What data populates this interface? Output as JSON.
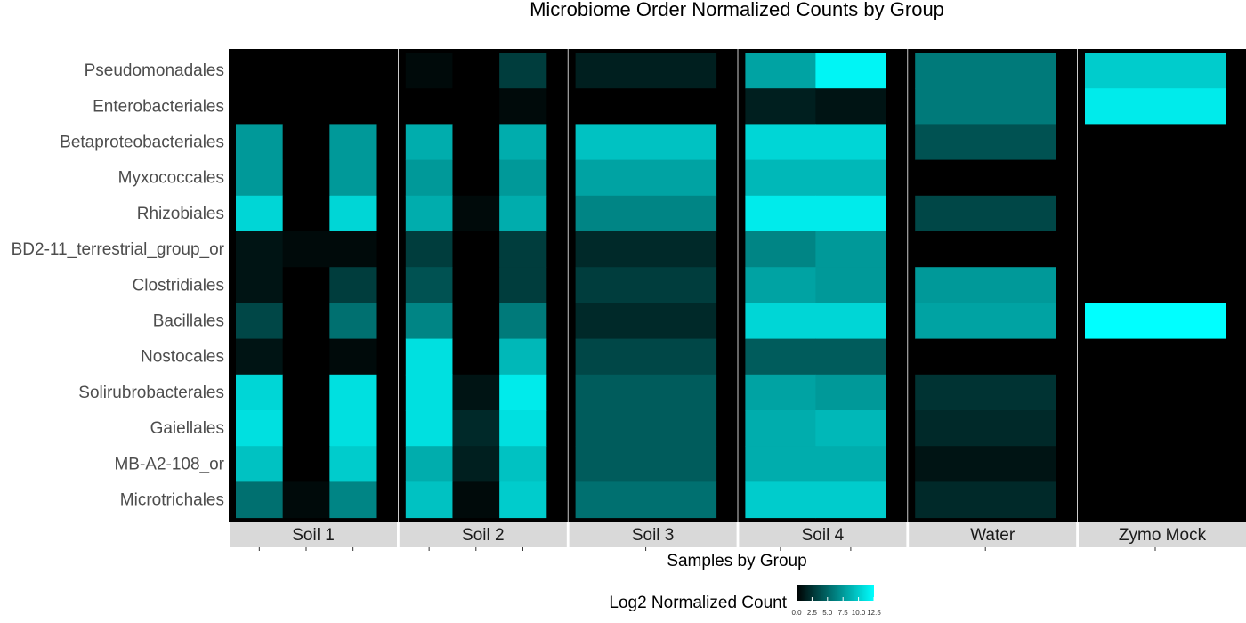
{
  "chart_data": {
    "type": "heatmap",
    "title": "Microbiome Order Normalized Counts by Group",
    "xlabel": "Samples by Group",
    "legend": {
      "title": "Log2 Normalized Count",
      "ticks": [
        "0.0",
        "2.5",
        "5.0",
        "7.5",
        "10.0",
        "12.5"
      ],
      "min": 0,
      "max": 12.5,
      "low_color": "#000000",
      "high_color": "#00ffff",
      "position": "bottom"
    },
    "rows": [
      "Pseudomonadales",
      "Enterobacteriales",
      "Betaproteobacteriales",
      "Myxococcales",
      "Rhizobiales",
      "BD2-11_terrestrial_group_or",
      "Clostridiales",
      "Bacillales",
      "Nostocales",
      "Solirubrobacterales",
      "Gaiellales",
      "MB-A2-108_or",
      "Microtrichales"
    ],
    "groups": [
      {
        "name": "Soil 1",
        "samples": 3,
        "values": [
          [
            0,
            0,
            0
          ],
          [
            0,
            0,
            0
          ],
          [
            7.5,
            0,
            7.5
          ],
          [
            7.5,
            0,
            7.5
          ],
          [
            10.5,
            0,
            10.5
          ],
          [
            1.0,
            0.5,
            0.5
          ],
          [
            1.0,
            0,
            3.0
          ],
          [
            3.5,
            0,
            5.5
          ],
          [
            1.0,
            0,
            0.5
          ],
          [
            10.5,
            0,
            11.0
          ],
          [
            11.0,
            0,
            11.0
          ],
          [
            9.5,
            0,
            10.0
          ],
          [
            5.5,
            0.5,
            6.5
          ]
        ]
      },
      {
        "name": "Soil 2",
        "samples": 3,
        "values": [
          [
            0.5,
            0,
            3.0
          ],
          [
            0,
            0,
            0.5
          ],
          [
            8.5,
            0,
            8.5
          ],
          [
            7.5,
            0,
            7.5
          ],
          [
            8.5,
            0.5,
            8.5
          ],
          [
            3.0,
            0,
            3.0
          ],
          [
            4.0,
            0,
            3.0
          ],
          [
            6.5,
            0,
            6.0
          ],
          [
            11.0,
            0,
            9.0
          ],
          [
            11.0,
            1.0,
            11.5
          ],
          [
            11.0,
            2.0,
            11.0
          ],
          [
            8.5,
            1.5,
            9.5
          ],
          [
            9.5,
            0.5,
            10.0
          ]
        ]
      },
      {
        "name": "Soil 3",
        "samples": 1,
        "values": [
          [
            1.5
          ],
          [
            0
          ],
          [
            9.5
          ],
          [
            8.0
          ],
          [
            6.5
          ],
          [
            2.0
          ],
          [
            3.0
          ],
          [
            2.0
          ],
          [
            3.5
          ],
          [
            4.5
          ],
          [
            4.5
          ],
          [
            4.5
          ],
          [
            5.5
          ]
        ]
      },
      {
        "name": "Soil 4",
        "samples": 2,
        "values": [
          [
            8.0,
            12.0
          ],
          [
            1.5,
            1.0
          ],
          [
            10.5,
            10.5
          ],
          [
            9.0,
            9.0
          ],
          [
            11.5,
            11.5
          ],
          [
            6.5,
            7.5
          ],
          [
            8.0,
            7.5
          ],
          [
            10.5,
            10.5
          ],
          [
            4.5,
            4.5
          ],
          [
            8.0,
            7.5
          ],
          [
            8.5,
            9.0
          ],
          [
            8.5,
            8.5
          ],
          [
            10.0,
            10.0
          ]
        ]
      },
      {
        "name": "Water",
        "samples": 1,
        "values": [
          [
            6.0
          ],
          [
            6.0
          ],
          [
            4.0
          ],
          [
            0
          ],
          [
            3.5
          ],
          [
            0
          ],
          [
            7.5
          ],
          [
            8.0
          ],
          [
            0
          ],
          [
            2.5
          ],
          [
            2.0
          ],
          [
            1.0
          ],
          [
            2.0
          ]
        ]
      },
      {
        "name": "Zymo Mock",
        "samples": 1,
        "values": [
          [
            10.0
          ],
          [
            11.5
          ],
          [
            0
          ],
          [
            0
          ],
          [
            0
          ],
          [
            0
          ],
          [
            0
          ],
          [
            12.5
          ],
          [
            0
          ],
          [
            0
          ],
          [
            0
          ],
          [
            0
          ],
          [
            0
          ]
        ]
      }
    ]
  }
}
